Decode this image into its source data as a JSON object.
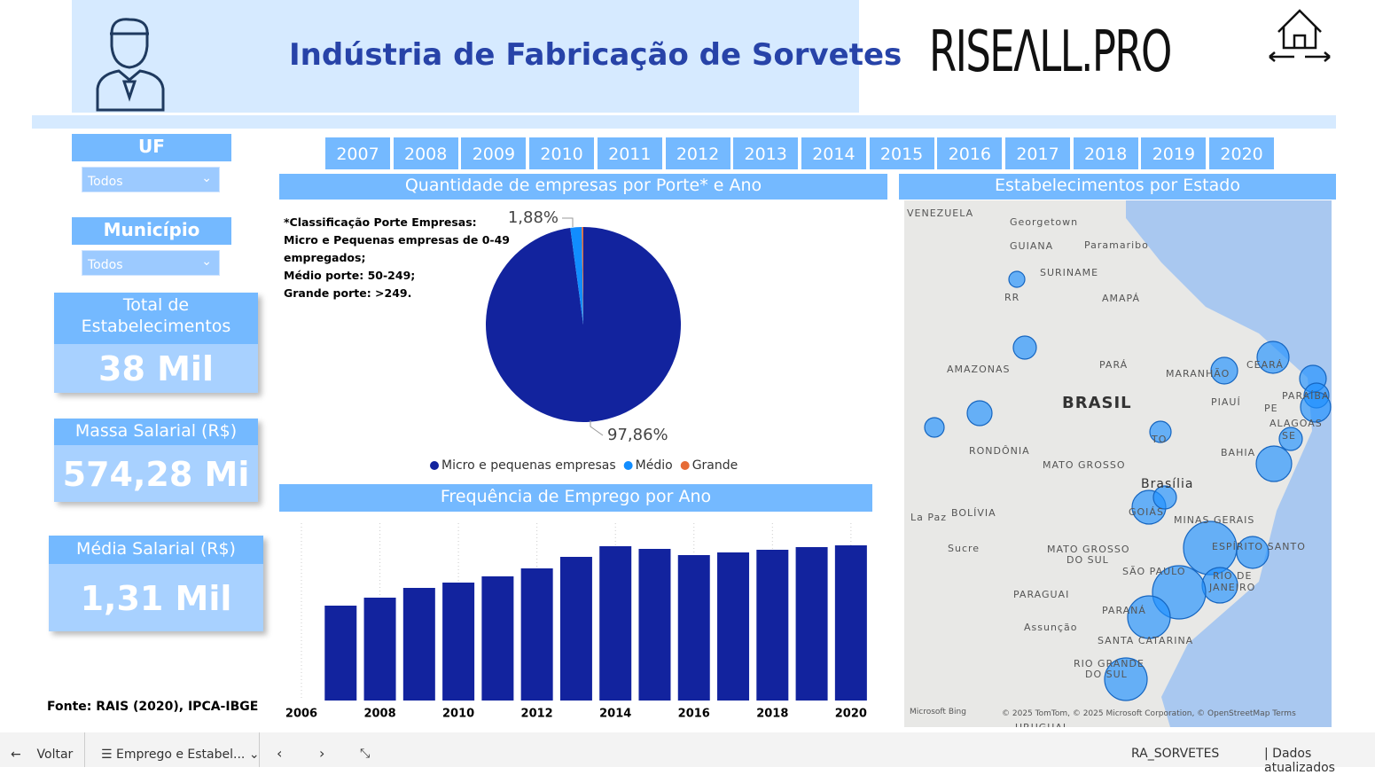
{
  "header": {
    "title": "Indústria de Fabricação de Sorvetes",
    "logo": "RISEΛLL.PRO"
  },
  "filters": {
    "uf_label": "UF",
    "uf_value": "Todos",
    "municipio_label": "Município",
    "municipio_value": "Todos"
  },
  "kpis": [
    {
      "label": "Total de Estabelecimentos",
      "value": "38 Mil"
    },
    {
      "label": "Massa Salarial (R$)",
      "value": "574,28 Mi"
    },
    {
      "label": "Média Salarial (R$)",
      "value": "1,31 Mil"
    }
  ],
  "source": "Fonte: RAIS (2020), IPCA-IBGE",
  "years": [
    "2007",
    "2008",
    "2009",
    "2010",
    "2011",
    "2012",
    "2013",
    "2014",
    "2015",
    "2016",
    "2017",
    "2018",
    "2019",
    "2020"
  ],
  "chart_data": [
    {
      "type": "pie",
      "title": "Quantidade de empresas por Porte* e Ano",
      "note": [
        "*Classificação Porte Empresas:",
        "Micro e Pequenas empresas de 0-49",
        "empregados;",
        "Médio porte: 50-249;",
        "Grande porte: >249."
      ],
      "categories": [
        "Micro e pequenas empresas",
        "Médio",
        "Grande"
      ],
      "values": [
        97.86,
        1.88,
        0.26
      ],
      "value_labels": [
        "97,86%",
        "1,88%",
        null
      ],
      "colors": [
        "#12239e",
        "#118dff",
        "#e66c37"
      ]
    },
    {
      "type": "bar",
      "title": "Frequência de Emprego por Ano",
      "x": [
        2007,
        2008,
        2009,
        2010,
        2011,
        2012,
        2013,
        2014,
        2015,
        2016,
        2017,
        2018,
        2019,
        2020
      ],
      "values": [
        107,
        116,
        127,
        133,
        140,
        149,
        162,
        174,
        171,
        164,
        167,
        170,
        173,
        175
      ],
      "color": "#12239e",
      "xlim": [
        2006,
        2020.5
      ],
      "xticks": [
        2006,
        2008,
        2010,
        2012,
        2014,
        2016,
        2018,
        2020
      ],
      "ylim": [
        0,
        200
      ],
      "grid": true
    }
  ],
  "map": {
    "title": "Estabelecimentos por Estado",
    "labels": [
      [
        "VENEZUELA",
        1023,
        240
      ],
      [
        "Georgetown",
        1139,
        250
      ],
      [
        "GUIANA",
        1139,
        277
      ],
      [
        "Paramaribo",
        1223,
        276
      ],
      [
        "SURINAME",
        1173,
        307
      ],
      [
        "RR",
        1133,
        335
      ],
      [
        "AMAPÁ",
        1243,
        336
      ],
      [
        "AMAZONAS",
        1068,
        416
      ],
      [
        "PARÁ",
        1240,
        411
      ],
      [
        "MARANHÃO",
        1315,
        421
      ],
      [
        "CEARÁ",
        1406,
        411
      ],
      [
        "PIAUÍ",
        1366,
        453
      ],
      [
        "PARAÍBA",
        1446,
        446
      ],
      [
        "PE",
        1426,
        460
      ],
      [
        "ALAGOAS",
        1432,
        477
      ],
      [
        "SE",
        1446,
        491
      ],
      [
        "TO",
        1299,
        495
      ],
      [
        "RONDÔNIA",
        1093,
        508
      ],
      [
        "MATO GROSSO",
        1176,
        524
      ],
      [
        "BAHIA",
        1377,
        510
      ],
      [
        "GOIÁS",
        1273,
        577
      ],
      [
        "La Paz",
        1027,
        583
      ],
      [
        "BOLÍVIA",
        1073,
        578
      ],
      [
        "MINAS GERAIS",
        1324,
        586
      ],
      [
        "ESPÍRITO SANTO",
        1367,
        616
      ],
      [
        "Sucre",
        1069,
        618
      ],
      [
        "MATO GROSSO",
        1181,
        619
      ],
      [
        "DO SUL",
        1203,
        631
      ],
      [
        "SÃO PAULO",
        1266,
        644
      ],
      [
        "RIO DE",
        1368,
        649
      ],
      [
        "JANEIRO",
        1364,
        662
      ],
      [
        "PARAGUAI",
        1143,
        670
      ],
      [
        "PARANÁ",
        1243,
        688
      ],
      [
        "Assunção",
        1155,
        707
      ],
      [
        "SANTA CATARINA",
        1238,
        722
      ],
      [
        "RIO GRANDE",
        1211,
        748
      ],
      [
        "DO SUL",
        1224,
        760
      ],
      [
        "URUGUAI",
        1145,
        820
      ]
    ],
    "country": "BRASIL",
    "capital": "Brasília",
    "attribution": "© 2025 TomTom, © 2025 Microsoft Corporation, © OpenStreetMap  Terms",
    "provider": "Microsoft Bing"
  },
  "footer": {
    "back": "Voltar",
    "page": "Emprego e Estabel...",
    "report": "RA_SORVETES",
    "updated": "Dados atualizados"
  }
}
